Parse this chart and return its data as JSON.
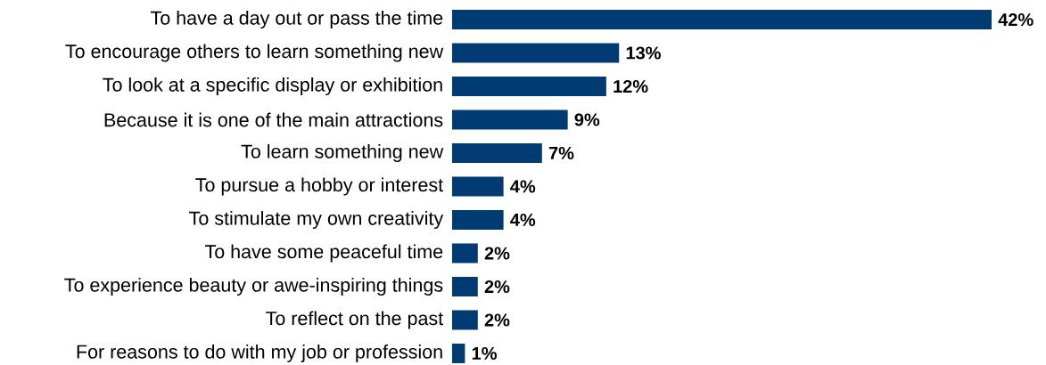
{
  "chart_data": {
    "type": "bar",
    "orientation": "horizontal",
    "categories": [
      "To have a day out or pass the time",
      "To encourage others to learn something new",
      "To look at a specific display or exhibition",
      "Because it is one of the main attractions",
      "To learn something new",
      "To pursue a hobby or interest",
      "To stimulate my own creativity",
      "To have some peaceful time",
      "To experience beauty or awe-inspiring things",
      "To reflect on the past",
      "For reasons to do with my job or profession"
    ],
    "values": [
      42,
      13,
      12,
      9,
      7,
      4,
      4,
      2,
      2,
      2,
      1
    ],
    "value_labels": [
      "42%",
      "13%",
      "12%",
      "9%",
      "7%",
      "4%",
      "4%",
      "2%",
      "2%",
      "2%",
      "1%"
    ],
    "color": "#003b73"
  }
}
